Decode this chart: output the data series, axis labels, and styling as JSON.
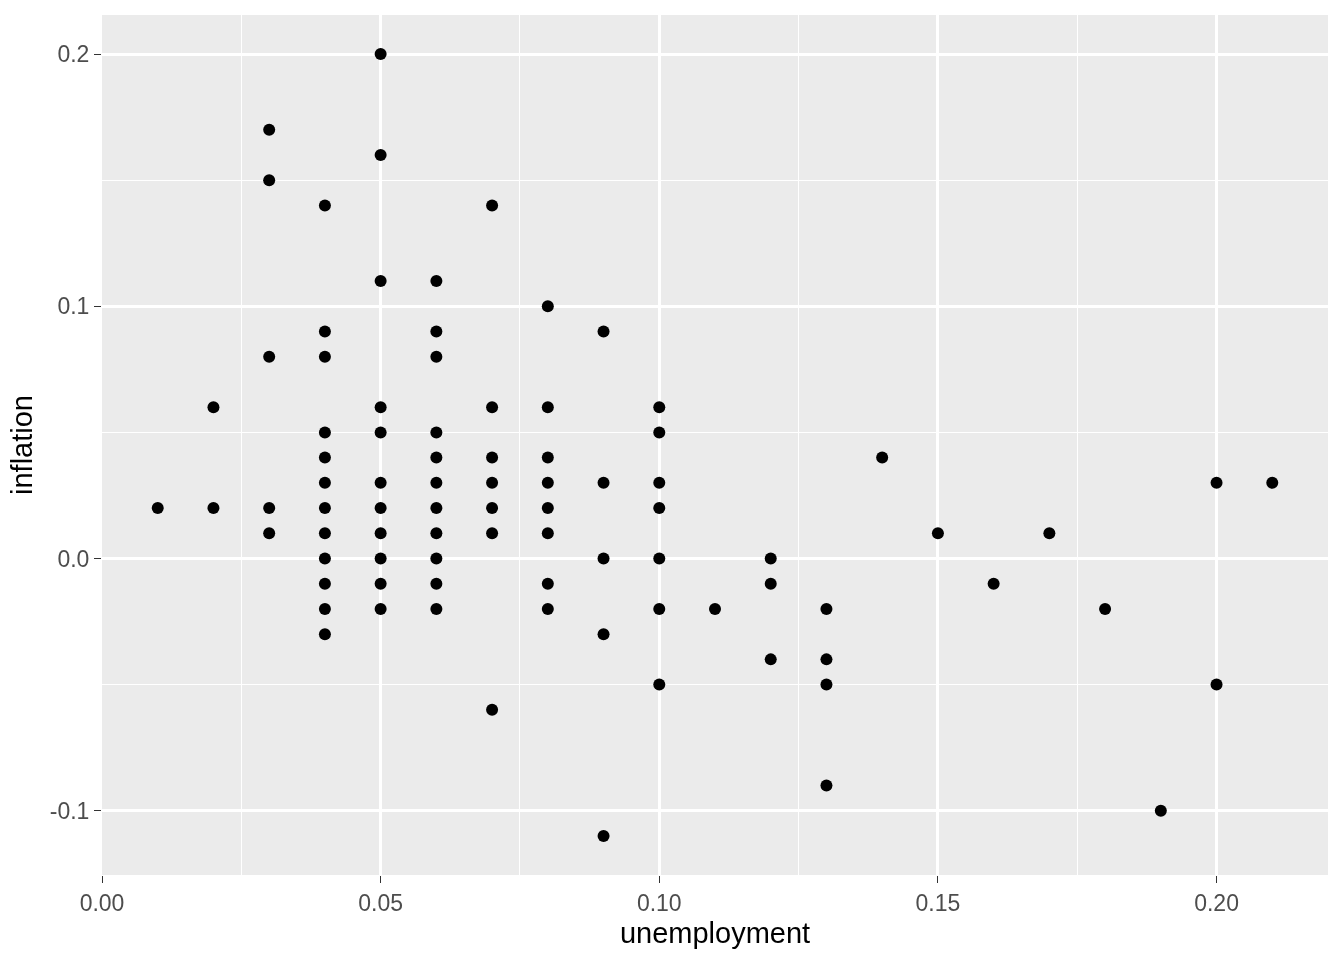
{
  "chart_data": {
    "type": "scatter",
    "xlabel": "unemployment",
    "ylabel": "inflation",
    "x": [
      0.01,
      0.02,
      0.02,
      0.03,
      0.03,
      0.03,
      0.03,
      0.03,
      0.04,
      0.04,
      0.04,
      0.04,
      0.04,
      0.04,
      0.04,
      0.04,
      0.04,
      0.04,
      0.04,
      0.04,
      0.05,
      0.05,
      0.05,
      0.05,
      0.05,
      0.05,
      0.05,
      0.05,
      0.05,
      0.05,
      0.05,
      0.06,
      0.06,
      0.06,
      0.06,
      0.06,
      0.06,
      0.06,
      0.06,
      0.06,
      0.06,
      0.06,
      0.07,
      0.07,
      0.07,
      0.07,
      0.07,
      0.07,
      0.07,
      0.08,
      0.08,
      0.08,
      0.08,
      0.08,
      0.08,
      0.08,
      0.08,
      0.09,
      0.09,
      0.09,
      0.09,
      0.09,
      0.1,
      0.1,
      0.1,
      0.1,
      0.1,
      0.1,
      0.1,
      0.11,
      0.12,
      0.12,
      0.12,
      0.13,
      0.13,
      0.13,
      0.13,
      0.14,
      0.15,
      0.16,
      0.17,
      0.18,
      0.19,
      0.2,
      0.2,
      0.21
    ],
    "values": [
      0.02,
      0.06,
      0.02,
      0.17,
      0.15,
      0.08,
      0.02,
      0.01,
      0.14,
      0.09,
      0.08,
      0.05,
      0.04,
      0.03,
      0.02,
      0.01,
      0.0,
      -0.01,
      -0.02,
      -0.03,
      0.2,
      0.16,
      0.11,
      0.06,
      0.05,
      0.03,
      0.02,
      0.01,
      0.0,
      -0.01,
      -0.02,
      0.11,
      0.09,
      0.08,
      0.05,
      0.04,
      0.03,
      0.02,
      0.01,
      0.0,
      -0.01,
      -0.02,
      0.14,
      0.06,
      0.04,
      0.03,
      0.02,
      0.01,
      -0.06,
      0.1,
      0.06,
      0.04,
      0.03,
      0.02,
      0.01,
      -0.01,
      -0.02,
      0.09,
      0.03,
      0.0,
      -0.03,
      -0.11,
      0.06,
      0.05,
      0.03,
      0.02,
      0.0,
      -0.02,
      -0.05,
      -0.02,
      0.0,
      -0.01,
      -0.04,
      -0.02,
      -0.04,
      -0.05,
      -0.09,
      0.04,
      0.01,
      -0.01,
      0.01,
      -0.02,
      -0.1,
      0.03,
      -0.05,
      0.03
    ],
    "color": "#000000",
    "marker": "circle",
    "xlim": [
      0,
      0.22
    ],
    "ylim": [
      -0.1255,
      0.2155
    ],
    "xticks": [
      {
        "value": 0,
        "label": "0.00"
      },
      {
        "value": 0.025,
        "label": null
      },
      {
        "value": 0.05,
        "label": "0.05"
      },
      {
        "value": 0.075,
        "label": null
      },
      {
        "value": 0.1,
        "label": "0.10"
      },
      {
        "value": 0.125,
        "label": null
      },
      {
        "value": 0.15,
        "label": "0.15"
      },
      {
        "value": 0.175,
        "label": null
      },
      {
        "value": 0.2,
        "label": "0.20"
      }
    ],
    "yticks": [
      -0.1,
      {
        "value": -0.05,
        "label": null
      },
      {
        "value": 0,
        "label": "0.0"
      },
      {
        "value": 0.05,
        "label": null
      },
      0.1,
      {
        "value": 0.15,
        "label": null
      },
      0.2
    ],
    "grid": true
  }
}
